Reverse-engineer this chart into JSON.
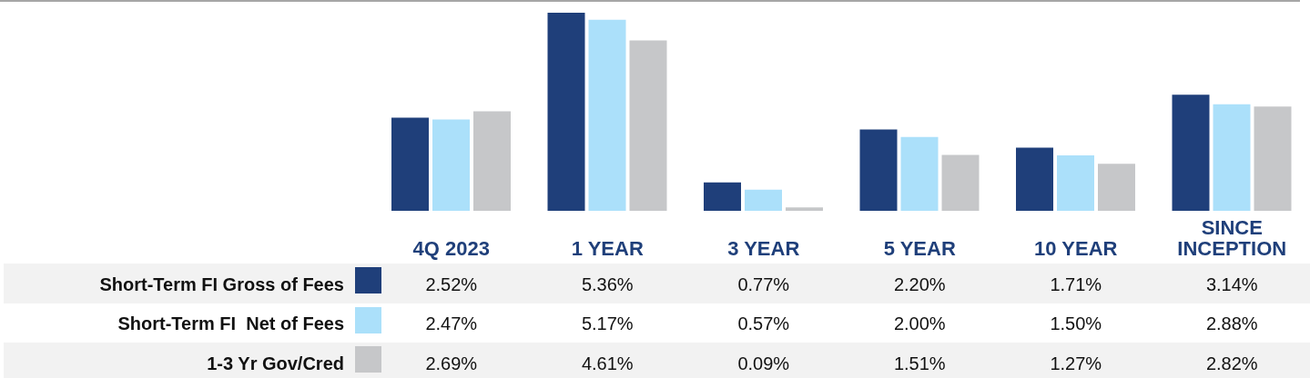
{
  "chart_data": {
    "type": "bar",
    "categories": [
      "4Q 2023",
      "1 YEAR",
      "3 YEAR",
      "5 YEAR",
      "10 YEAR",
      "SINCE INCEPTION"
    ],
    "series": [
      {
        "name": "Short-Term FI Gross of Fees",
        "color": "#1f3f7a",
        "values": [
          2.52,
          5.36,
          0.77,
          2.2,
          1.71,
          3.14
        ],
        "value_labels": [
          "2.52%",
          "5.36%",
          "0.77%",
          "2.20%",
          "1.71%",
          "3.14%"
        ]
      },
      {
        "name": "Short-Term FI  Net of Fees",
        "color": "#abe0fa",
        "values": [
          2.47,
          5.17,
          0.57,
          2.0,
          1.5,
          2.88
        ],
        "value_labels": [
          "2.47%",
          "5.17%",
          "0.57%",
          "2.00%",
          "1.50%",
          "2.88%"
        ]
      },
      {
        "name": "1-3 Yr Gov/Cred",
        "color": "#c6c7c9",
        "values": [
          2.69,
          4.61,
          0.09,
          1.51,
          1.27,
          2.82
        ],
        "value_labels": [
          "2.69%",
          "4.61%",
          "0.09%",
          "1.51%",
          "1.27%",
          "2.82%"
        ]
      }
    ],
    "legend": "bottom left"
  }
}
